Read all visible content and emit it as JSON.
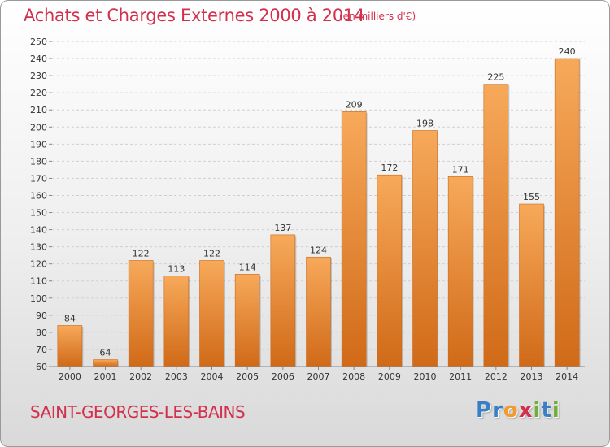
{
  "header": {
    "title": "Achats et Charges Externes 2000 à 2014",
    "subtitle": "(en milliers d'€)"
  },
  "footer": {
    "town": "SAINT-GEORGES-LES-BAINS",
    "logo_text": "Proxiti",
    "logo_letters": [
      {
        "char": "P",
        "color": "#3a7fc4"
      },
      {
        "char": "r",
        "color": "#3a7fc4"
      },
      {
        "char": "o",
        "color": "#f29a2e"
      },
      {
        "char": "x",
        "color": "#d2304c"
      },
      {
        "char": "i",
        "color": "#6fae3a"
      },
      {
        "char": "t",
        "color": "#3a7fc4"
      },
      {
        "char": "i",
        "color": "#6fae3a"
      }
    ]
  },
  "colors": {
    "title": "#d2304c",
    "bar_light": "#f7a95a",
    "bar_dark": "#d06a18",
    "grid": "#cfcfcf"
  },
  "chart_data": {
    "type": "bar",
    "categories": [
      "2000",
      "2001",
      "2002",
      "2003",
      "2004",
      "2005",
      "2006",
      "2007",
      "2008",
      "2009",
      "2010",
      "2011",
      "2012",
      "2013",
      "2014"
    ],
    "values": [
      84,
      64,
      122,
      113,
      122,
      114,
      137,
      124,
      209,
      172,
      198,
      171,
      225,
      155,
      240
    ],
    "data_labels": [
      "84",
      "64",
      "122",
      "113",
      "122",
      "114",
      "137",
      "124",
      "209",
      "172",
      "198",
      "171",
      "225",
      "155",
      "240"
    ],
    "ylim": [
      60,
      250
    ],
    "yticks": [
      60,
      70,
      80,
      90,
      100,
      110,
      120,
      130,
      140,
      150,
      160,
      170,
      180,
      190,
      200,
      210,
      220,
      230,
      240,
      250
    ],
    "grid": true,
    "legend": false,
    "title": "Achats et Charges Externes 2000 à 2014",
    "xlabel": "",
    "ylabel": ""
  }
}
